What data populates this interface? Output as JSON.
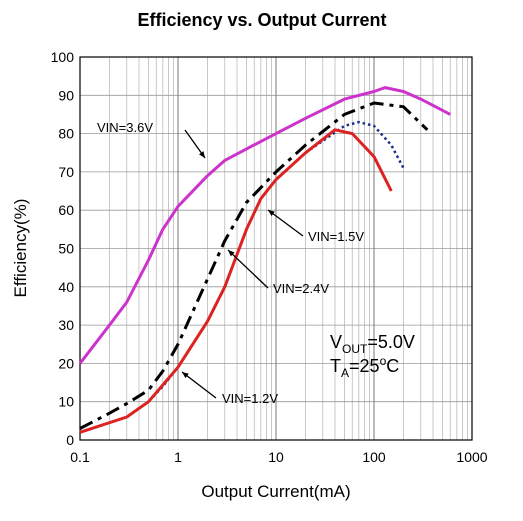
{
  "chart_data": {
    "type": "line",
    "title": "Efficiency vs. Output Current",
    "xlabel": "Output Current(mA)",
    "ylabel": "Efficiency(%)",
    "log_x": true,
    "grid": true,
    "xlim": [
      0.1,
      1000
    ],
    "xticks": [
      0.1,
      1,
      10,
      100,
      1000
    ],
    "ylim": [
      0,
      100
    ],
    "yticks": [
      0,
      10,
      20,
      30,
      40,
      50,
      60,
      70,
      80,
      90,
      100
    ],
    "series": [
      {
        "name": "VIN=3.6V",
        "color": "#cc33cc",
        "dash": "solid",
        "x": [
          0.1,
          0.2,
          0.3,
          0.5,
          0.7,
          1,
          2,
          3,
          5,
          10,
          20,
          50,
          100,
          130,
          200,
          300,
          600
        ],
        "values": [
          20,
          30,
          36,
          47,
          55,
          61,
          69,
          73,
          76,
          80,
          84,
          89,
          91,
          92,
          91,
          89,
          85
        ]
      },
      {
        "name": "VIN=1.5V",
        "color": "#1a2e8c",
        "dash": "dotted",
        "x": [
          0.1,
          0.2,
          0.3,
          0.5,
          0.7,
          1,
          2,
          3,
          5,
          7,
          10,
          20,
          50,
          70,
          100,
          150,
          200
        ],
        "values": [
          2,
          4.5,
          6,
          10,
          14,
          19,
          31,
          40,
          55,
          63,
          68,
          75,
          82,
          83,
          82,
          77,
          71
        ]
      },
      {
        "name": "VIN=2.4V",
        "color": "#000000",
        "dash": "dashed",
        "x": [
          0.1,
          0.2,
          0.3,
          0.5,
          0.7,
          1,
          2,
          3,
          5,
          10,
          20,
          50,
          100,
          200,
          350
        ],
        "values": [
          3,
          7,
          9.5,
          13,
          18,
          25,
          42,
          52,
          62,
          70,
          77,
          85,
          88,
          87,
          81
        ]
      },
      {
        "name": "VIN=1.2V",
        "color": "#dd2222",
        "dash": "solid",
        "x": [
          0.1,
          0.3,
          0.5,
          1,
          2,
          3,
          5,
          7,
          10,
          20,
          40,
          60,
          100,
          150
        ],
        "values": [
          2,
          6,
          10,
          19,
          31,
          40,
          55,
          63,
          68,
          75,
          81,
          80,
          74,
          65
        ]
      }
    ],
    "annotations": [
      [
        {
          "text": "V"
        },
        {
          "sub": "OUT"
        },
        {
          "text": "=5.0V"
        }
      ],
      [
        {
          "text": "T"
        },
        {
          "sub": "A"
        },
        {
          "text": "=25"
        },
        {
          "sup": "o"
        },
        {
          "text": "C"
        }
      ]
    ]
  }
}
